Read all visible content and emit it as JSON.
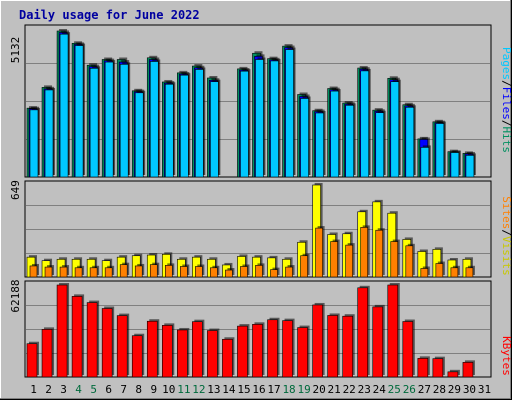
{
  "title": "Daily usage for June 2022",
  "colors": {
    "background": "#c0c0c0",
    "title": "#0000a0",
    "hits": "#009060",
    "files": "#0000ff",
    "pages": "#00c8ff",
    "visits": "#ffff00",
    "sites": "#ff8000",
    "kbytes": "#ff0000",
    "weekend_day": "#006a3c",
    "weekday": "#000000"
  },
  "chart_data": [
    {
      "type": "bar",
      "panel": "top",
      "max_label": "5132",
      "ylim": [
        0,
        5132
      ],
      "legend": {
        "pages": "Pages",
        "files": "Files",
        "hits": "Hits",
        "sep": "/"
      },
      "categories": [
        "1",
        "2",
        "3",
        "4",
        "5",
        "6",
        "7",
        "8",
        "9",
        "10",
        "11",
        "12",
        "13",
        "14",
        "15",
        "16",
        "17",
        "18",
        "19",
        "20",
        "21",
        "22",
        "23",
        "24",
        "25",
        "26",
        "27",
        "28",
        "29",
        "30",
        "31"
      ],
      "series": [
        {
          "name": "Hits",
          "values": [
            2420,
            3150,
            5132,
            4700,
            3930,
            4130,
            4130,
            3030,
            4190,
            3340,
            3660,
            3900,
            3480,
            0,
            3800,
            4350,
            4160,
            4600,
            2900,
            2330,
            3110,
            2600,
            3830,
            2350,
            3470,
            2540,
            1340,
            1940,
            890,
            830,
            0
          ]
        },
        {
          "name": "Files",
          "values": [
            2400,
            3100,
            5080,
            4660,
            3880,
            4090,
            4040,
            3000,
            4130,
            3300,
            3620,
            3840,
            3400,
            0,
            3760,
            4240,
            4120,
            4550,
            2830,
            2300,
            3070,
            2560,
            3790,
            2310,
            3420,
            2500,
            1320,
            1910,
            860,
            810,
            0
          ]
        },
        {
          "name": "Pages",
          "values": [
            2360,
            3060,
            5020,
            4620,
            3820,
            4040,
            3960,
            2960,
            4060,
            3260,
            3580,
            3780,
            3350,
            0,
            3720,
            4130,
            4080,
            4480,
            2760,
            2250,
            3020,
            2520,
            3730,
            2260,
            3350,
            2450,
            1040,
            1880,
            860,
            760,
            0
          ]
        }
      ]
    },
    {
      "type": "bar",
      "panel": "middle",
      "max_label": "649",
      "ylim": [
        0,
        649
      ],
      "legend": {
        "sites": "Sites",
        "visits": "Visits",
        "sep": "/"
      },
      "categories": [
        "1",
        "2",
        "3",
        "4",
        "5",
        "6",
        "7",
        "8",
        "9",
        "10",
        "11",
        "12",
        "13",
        "14",
        "15",
        "16",
        "17",
        "18",
        "19",
        "20",
        "21",
        "22",
        "23",
        "24",
        "25",
        "26",
        "27",
        "28",
        "29",
        "30",
        "31"
      ],
      "series": [
        {
          "name": "Visits",
          "values": [
            140,
            115,
            125,
            125,
            125,
            115,
            140,
            150,
            155,
            160,
            125,
            140,
            125,
            85,
            145,
            140,
            135,
            125,
            245,
            649,
            300,
            305,
            460,
            530,
            450,
            265,
            180,
            195,
            120,
            125,
            0
          ]
        },
        {
          "name": "Sites",
          "values": [
            78,
            70,
            70,
            65,
            65,
            65,
            87,
            78,
            87,
            82,
            74,
            74,
            65,
            49,
            74,
            82,
            52,
            70,
            150,
            345,
            250,
            225,
            350,
            330,
            250,
            220,
            60,
            95,
            65,
            65,
            0
          ]
        }
      ]
    },
    {
      "type": "bar",
      "panel": "bottom",
      "max_label": "62188",
      "ylim": [
        0,
        62188
      ],
      "legend": {
        "kbytes": "KBytes"
      },
      "categories": [
        "1",
        "2",
        "3",
        "4",
        "5",
        "6",
        "7",
        "8",
        "9",
        "10",
        "11",
        "12",
        "13",
        "14",
        "15",
        "16",
        "17",
        "18",
        "19",
        "20",
        "21",
        "22",
        "23",
        "24",
        "25",
        "26",
        "27",
        "28",
        "29",
        "30",
        "31"
      ],
      "series": [
        {
          "name": "KBytes",
          "values": [
            22500,
            32200,
            62188,
            54500,
            50300,
            46300,
            41500,
            27900,
            37700,
            34900,
            31800,
            37400,
            31400,
            25500,
            34400,
            35600,
            38700,
            38100,
            33400,
            48700,
            41600,
            41100,
            60300,
            47400,
            62188,
            37500,
            12600,
            12400,
            3500,
            9900,
            0
          ]
        }
      ]
    }
  ]
}
